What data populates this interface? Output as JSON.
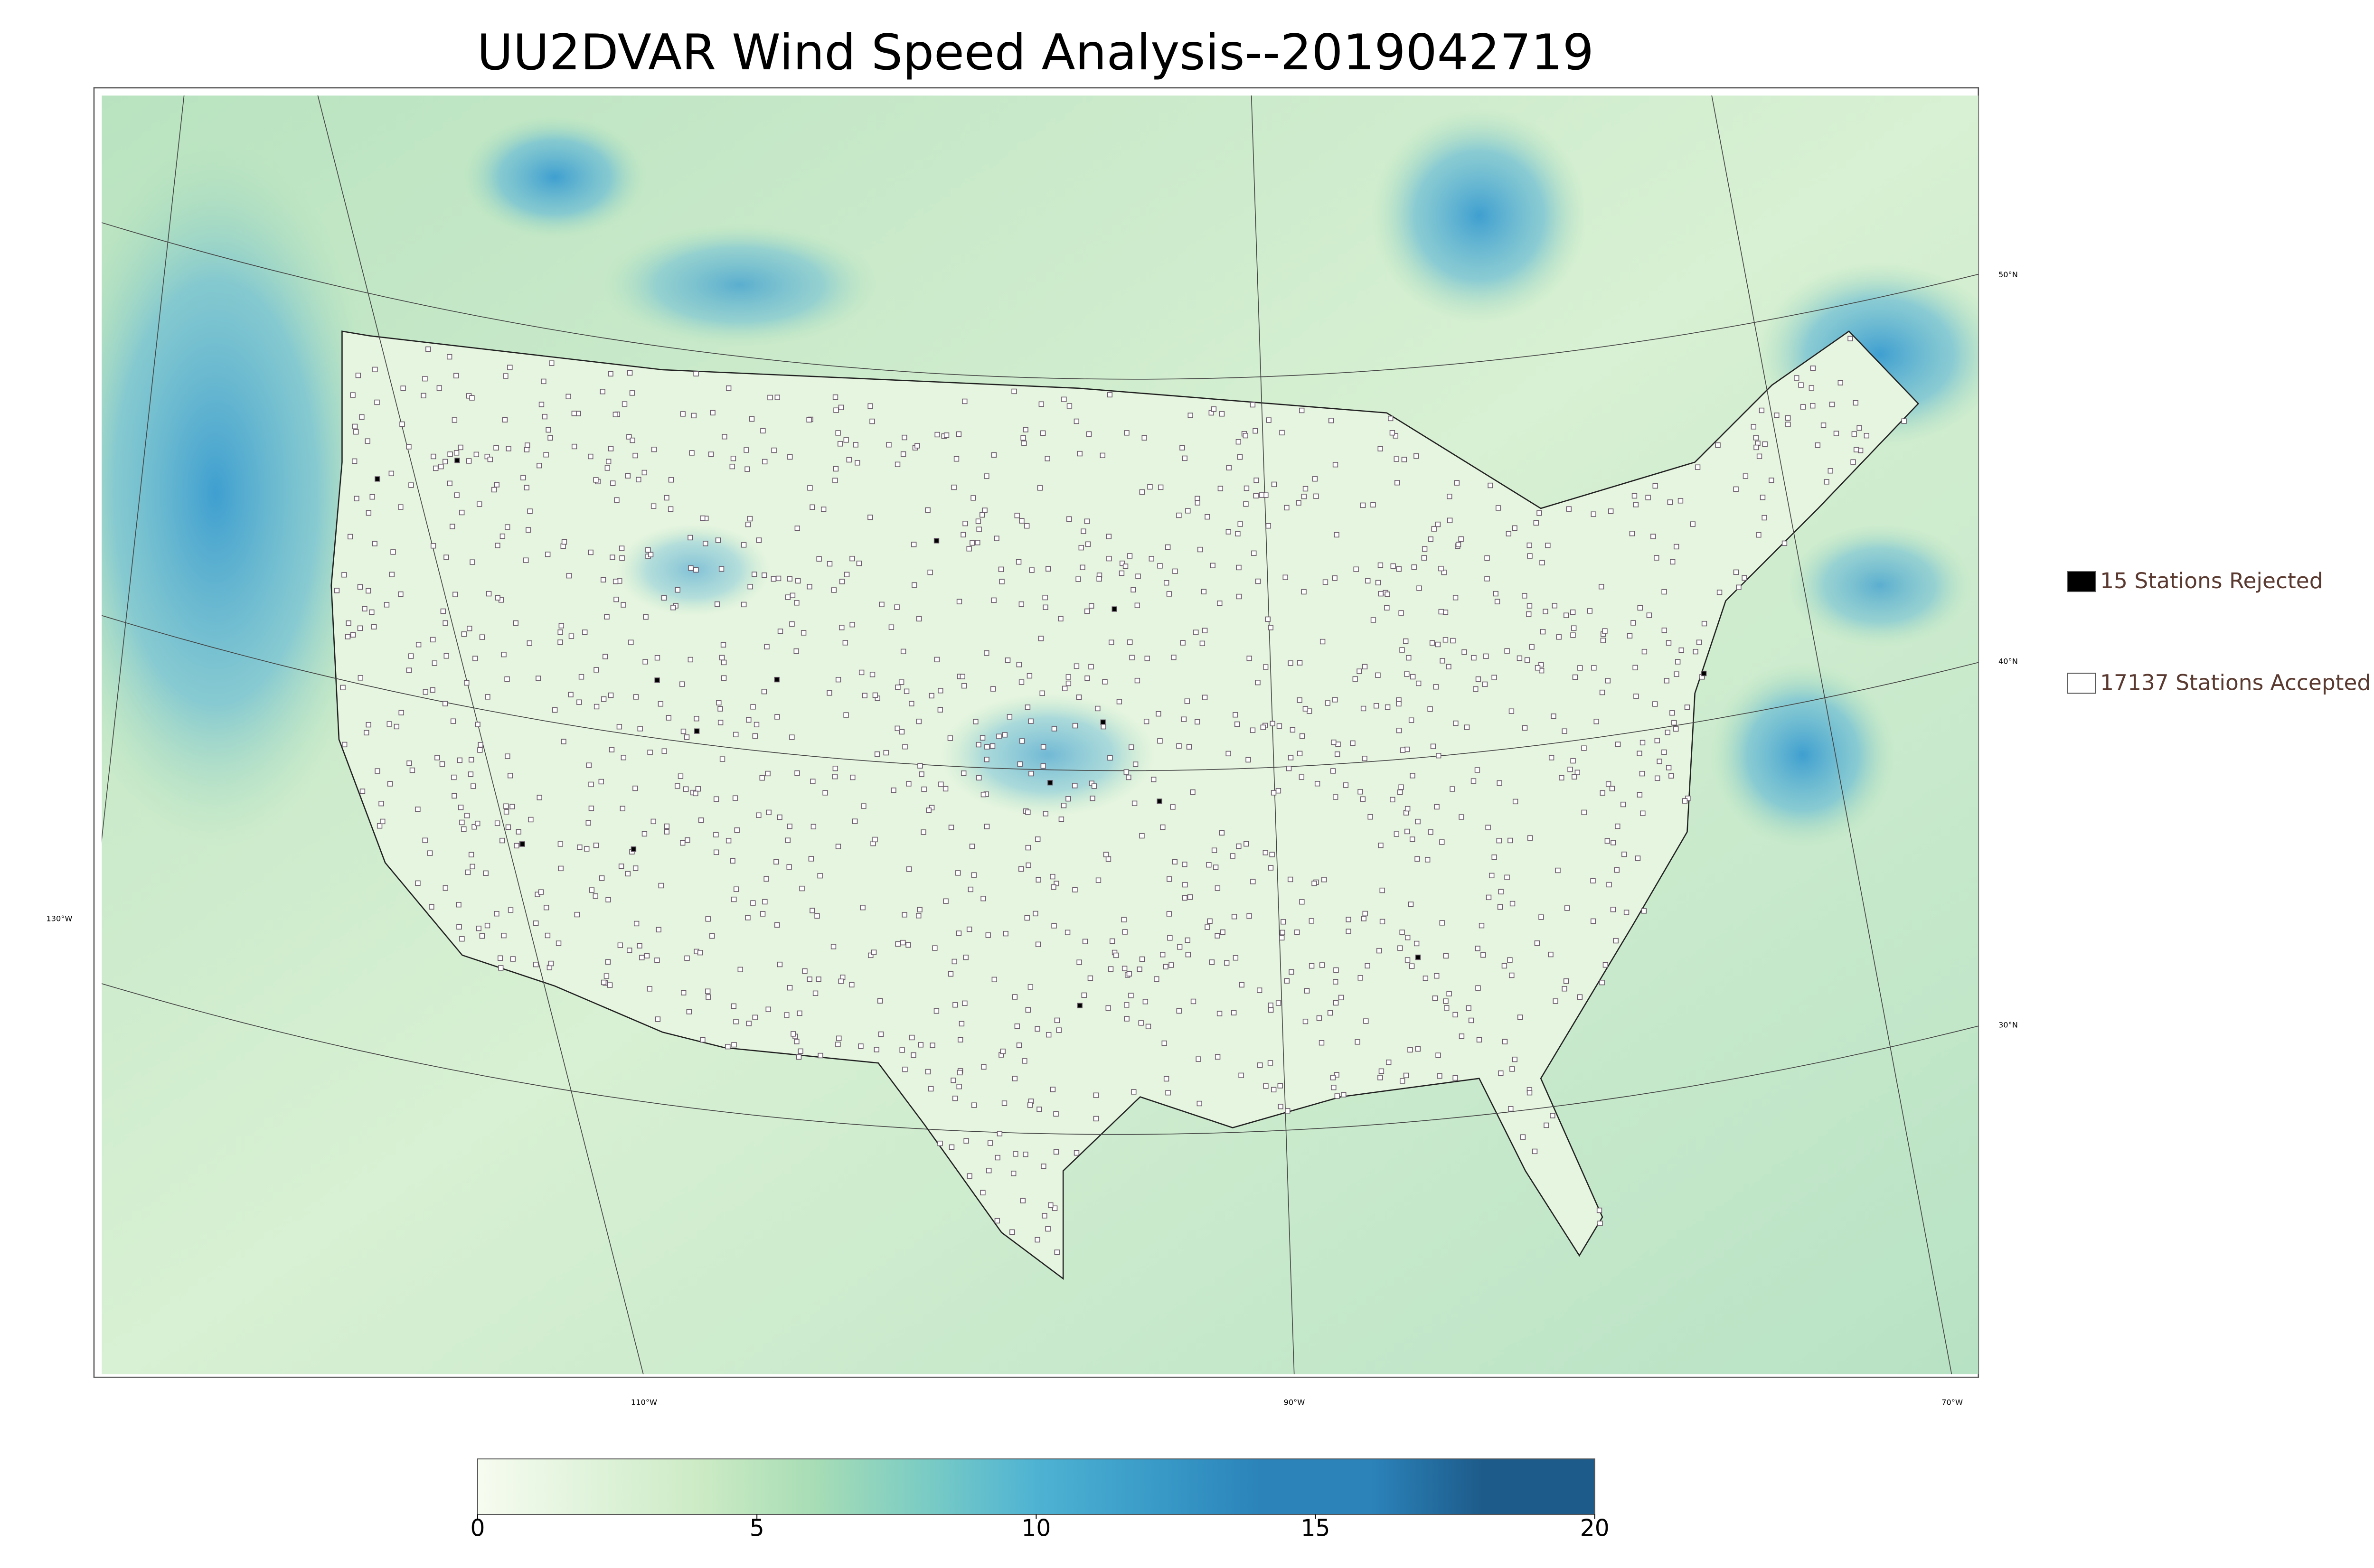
{
  "title": "UU2DVAR Wind Speed Analysis--2019042719",
  "map": {
    "latitude_labels": [
      "50°N",
      "40°N",
      "30°N"
    ],
    "longitude_labels": [
      "130°W",
      "110°W",
      "90°W",
      "70°W"
    ]
  },
  "legend": [
    {
      "label": "15 Stations Rejected",
      "color": "#000000"
    },
    {
      "label": "17137 Stations Accepted",
      "color": "#ffffff"
    }
  ],
  "colorbar": {
    "lim": [
      0,
      20
    ],
    "ticks": [
      0,
      5,
      10,
      15,
      20
    ],
    "colors": [
      "#f7fcf0",
      "#e0f3db",
      "#ccebc5",
      "#a8ddb5",
      "#7bccc4",
      "#4eb3d3",
      "#3a9cc8",
      "#2b83ba",
      "#2b83ba",
      "#1d5b8a",
      "#1d5b8a"
    ]
  }
}
